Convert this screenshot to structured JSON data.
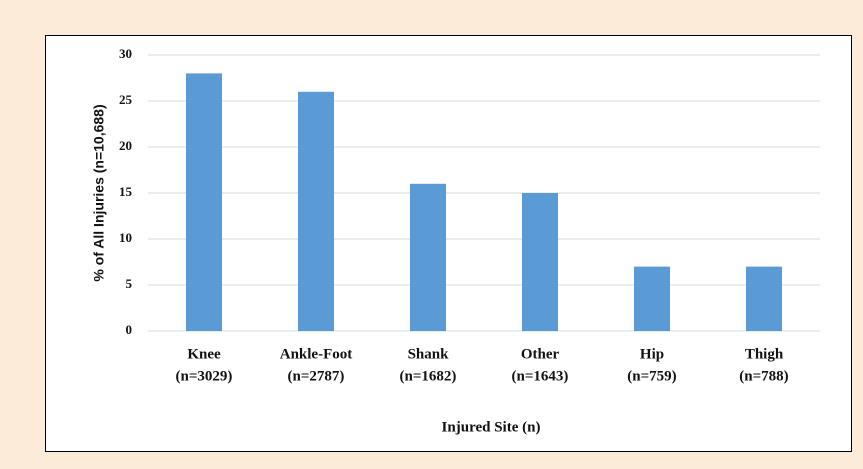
{
  "chart_data": {
    "type": "bar",
    "y_label": "% of All Injuries (n=10,688)",
    "x_label": "Injured  Site (n)",
    "categories": [
      [
        "Knee",
        "(n=3029)"
      ],
      [
        "Ankle-Foot",
        "(n=2787)"
      ],
      [
        "Shank",
        "(n=1682)"
      ],
      [
        "Other",
        "(n=1643)"
      ],
      [
        "Hip",
        "(n=759)"
      ],
      [
        "Thigh",
        "(n=788)"
      ]
    ],
    "values": [
      28,
      26,
      16,
      15,
      7,
      7
    ],
    "color": "#5b9bd5",
    "ylim": [
      0,
      30
    ],
    "yticks": [
      0,
      5,
      10,
      15,
      20,
      25,
      30
    ],
    "grid": true
  }
}
